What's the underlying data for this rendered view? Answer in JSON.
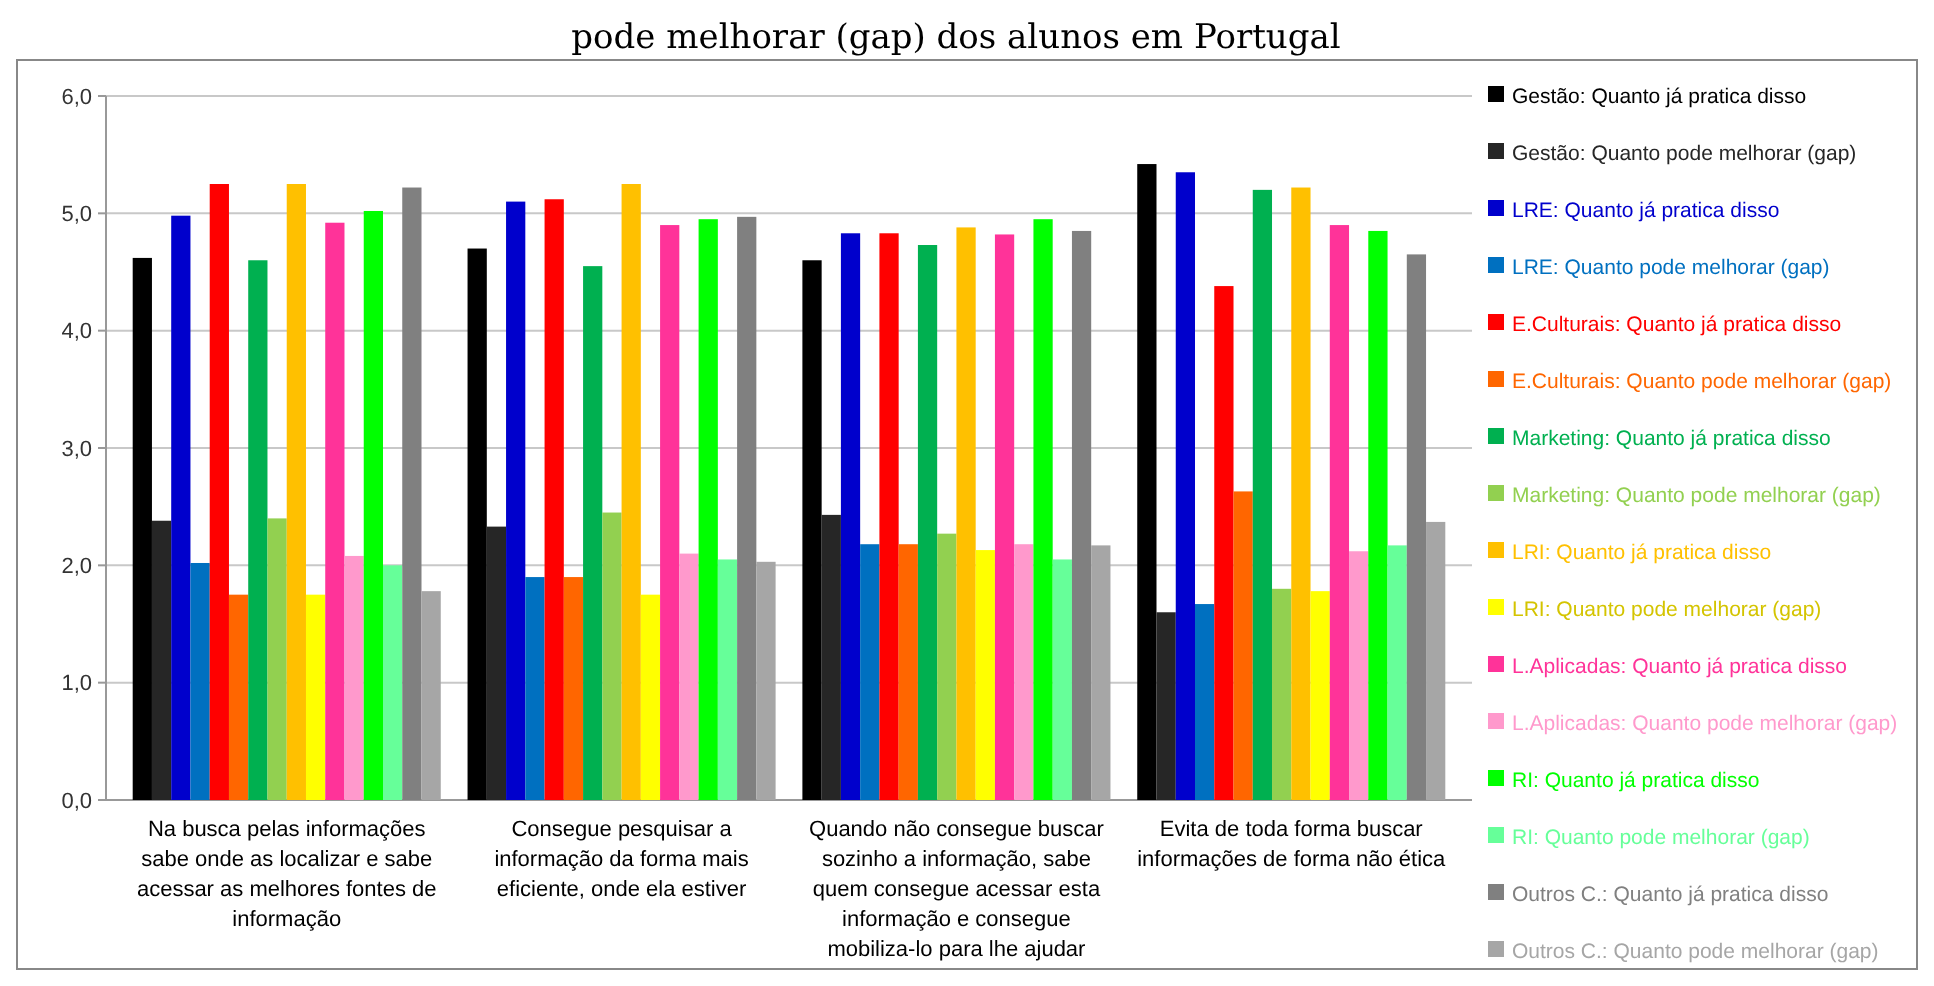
{
  "chart_data": {
    "type": "bar",
    "title": "pode melhorar (gap) dos alunos em Portugal",
    "categories": [
      "Na busca pelas informações sabe onde as localizar e sabe acessar as melhores fontes de informação",
      "Consegue pesquisar a informação da forma mais eficiente, onde ela estiver",
      "Quando não consegue buscar sozinho a informação, sabe quem consegue acessar esta informação e consegue mobiliza-lo para lhe ajudar",
      "Evita de toda forma buscar informações de forma não ética"
    ],
    "ylim": [
      0,
      6
    ],
    "yticks": [
      {
        "value": 0,
        "label": "0,0"
      },
      {
        "value": 1,
        "label": "1,0"
      },
      {
        "value": 2,
        "label": "2,0"
      },
      {
        "value": 3,
        "label": "3,0"
      },
      {
        "value": 4,
        "label": "4,0"
      },
      {
        "value": 5,
        "label": "5,0"
      },
      {
        "value": 6,
        "label": "6,0"
      }
    ],
    "grid": "y",
    "legend": "right",
    "series": [
      {
        "name": "Gestão: Quanto já pratica disso",
        "color": "#000000",
        "values": [
          4.62,
          4.7,
          4.6,
          5.42
        ]
      },
      {
        "name": "Gestão: Quanto pode melhorar (gap)",
        "color": "#262626",
        "values": [
          2.38,
          2.33,
          2.43,
          1.6
        ]
      },
      {
        "name": "LRE: Quanto já pratica disso",
        "color": "#0000cc",
        "values": [
          4.98,
          5.1,
          4.83,
          5.35
        ]
      },
      {
        "name": "LRE: Quanto pode melhorar (gap)",
        "color": "#0070c0",
        "values": [
          2.02,
          1.9,
          2.18,
          1.67
        ]
      },
      {
        "name": "E.Culturais: Quanto já pratica disso",
        "color": "#ff0000",
        "values": [
          5.25,
          5.12,
          4.83,
          4.38
        ]
      },
      {
        "name": "E.Culturais: Quanto pode melhorar (gap)",
        "color": "#ff6600",
        "values": [
          1.75,
          1.9,
          2.18,
          2.63
        ]
      },
      {
        "name": "Marketing: Quanto já pratica disso",
        "color": "#00b050",
        "values": [
          4.6,
          4.55,
          4.73,
          5.2
        ]
      },
      {
        "name": "Marketing: Quanto pode melhorar (gap)",
        "color": "#92d050",
        "values": [
          2.4,
          2.45,
          2.27,
          1.8
        ]
      },
      {
        "name": "LRI: Quanto já pratica disso",
        "color": "#ffc000",
        "values": [
          5.25,
          5.25,
          4.88,
          5.22
        ]
      },
      {
        "name": "LRI: Quanto pode melhorar (gap)",
        "color": "#ffff00",
        "values": [
          1.75,
          1.75,
          2.13,
          1.78
        ]
      },
      {
        "name": "L.Aplicadas: Quanto já pratica disso",
        "color": "#ff3399",
        "values": [
          4.92,
          4.9,
          4.82,
          4.9
        ]
      },
      {
        "name": "L.Aplicadas: Quanto pode melhorar (gap)",
        "color": "#ff99cc",
        "values": [
          2.08,
          2.1,
          2.18,
          2.12
        ]
      },
      {
        "name": "RI: Quanto já pratica disso",
        "color": "#00ff00",
        "values": [
          5.02,
          4.95,
          4.95,
          4.85
        ]
      },
      {
        "name": "RI: Quanto pode melhorar (gap)",
        "color": "#66ff99",
        "values": [
          2.0,
          2.05,
          2.05,
          2.17
        ]
      },
      {
        "name": "Outros C.: Quanto já pratica disso",
        "color": "#808080",
        "values": [
          5.22,
          4.97,
          4.85,
          4.65
        ]
      },
      {
        "name": "Outros C.: Quanto pode melhorar (gap)",
        "color": "#a6a6a6",
        "values": [
          1.78,
          2.03,
          2.17,
          2.37
        ]
      }
    ]
  }
}
